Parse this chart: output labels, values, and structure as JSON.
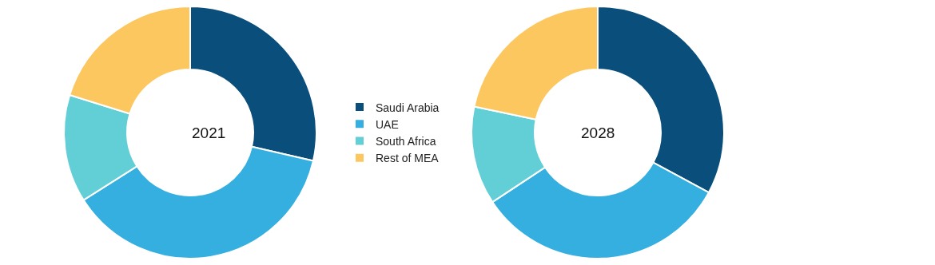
{
  "chart_data": {
    "type": "donut",
    "categories": [
      "Saudi Arabia",
      "UAE",
      "South Africa",
      "Rest of MEA"
    ],
    "colors": [
      "#0a4f7c",
      "#35afe0",
      "#62cfd6",
      "#fdc75f"
    ],
    "legend": "right",
    "series": [
      {
        "name": "2021",
        "values": [
          28.6,
          37.4,
          13.8,
          20.2
        ]
      },
      {
        "name": "2028",
        "values": [
          32.9,
          32.8,
          12.6,
          21.7
        ]
      }
    ]
  }
}
